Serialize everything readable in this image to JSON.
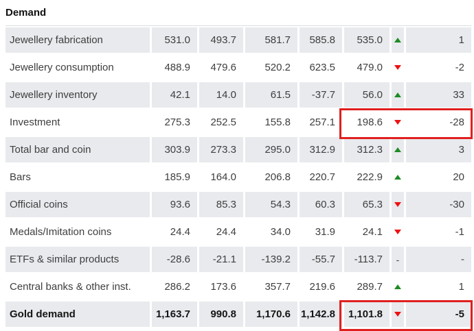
{
  "title": "Demand",
  "colors": {
    "row_shade": "#e8eaed",
    "up_green": "#1f8b24",
    "down_red": "#ee1111",
    "highlight_border": "#e01f1f",
    "text": "#3e3e3e"
  },
  "chart_data": {
    "type": "table",
    "title": "Demand",
    "no_change_symbol": "-",
    "highlighted_rows": [
      "Investment",
      "Gold demand"
    ],
    "rows": [
      {
        "label": "Jewellery fabrication",
        "values": [
          "531.0",
          "493.7",
          "581.7",
          "585.8",
          "535.0"
        ],
        "trend": "up",
        "change": "1",
        "bold": false,
        "highlighted": false
      },
      {
        "label": "Jewellery consumption",
        "values": [
          "488.9",
          "479.6",
          "520.2",
          "623.5",
          "479.0"
        ],
        "trend": "down",
        "change": "-2",
        "bold": false,
        "highlighted": false
      },
      {
        "label": "Jewellery inventory",
        "values": [
          "42.1",
          "14.0",
          "61.5",
          "-37.7",
          "56.0"
        ],
        "trend": "up",
        "change": "33",
        "bold": false,
        "highlighted": false
      },
      {
        "label": "Investment",
        "values": [
          "275.3",
          "252.5",
          "155.8",
          "257.1",
          "198.6"
        ],
        "trend": "down",
        "change": "-28",
        "bold": false,
        "highlighted": true
      },
      {
        "label": "Total bar and coin",
        "values": [
          "303.9",
          "273.3",
          "295.0",
          "312.9",
          "312.3"
        ],
        "trend": "up",
        "change": "3",
        "bold": false,
        "highlighted": false
      },
      {
        "label": "Bars",
        "values": [
          "185.9",
          "164.0",
          "206.8",
          "220.7",
          "222.9"
        ],
        "trend": "up",
        "change": "20",
        "bold": false,
        "highlighted": false
      },
      {
        "label": "Official coins",
        "values": [
          "93.6",
          "85.3",
          "54.3",
          "60.3",
          "65.3"
        ],
        "trend": "down",
        "change": "-30",
        "bold": false,
        "highlighted": false
      },
      {
        "label": "Medals/Imitation coins",
        "values": [
          "24.4",
          "24.4",
          "34.0",
          "31.9",
          "24.1"
        ],
        "trend": "down",
        "change": "-1",
        "bold": false,
        "highlighted": false
      },
      {
        "label": "ETFs & similar products",
        "values": [
          "-28.6",
          "-21.1",
          "-139.2",
          "-55.7",
          "-113.7"
        ],
        "trend": "none",
        "change": "-",
        "bold": false,
        "highlighted": false
      },
      {
        "label": "Central banks & other inst.",
        "values": [
          "286.2",
          "173.6",
          "357.7",
          "219.6",
          "289.7"
        ],
        "trend": "up",
        "change": "1",
        "bold": false,
        "highlighted": false
      },
      {
        "label": "Gold demand",
        "values": [
          "1,163.7",
          "990.8",
          "1,170.6",
          "1,142.8",
          "1,101.8"
        ],
        "trend": "down",
        "change": "-5",
        "bold": true,
        "highlighted": true
      }
    ]
  }
}
